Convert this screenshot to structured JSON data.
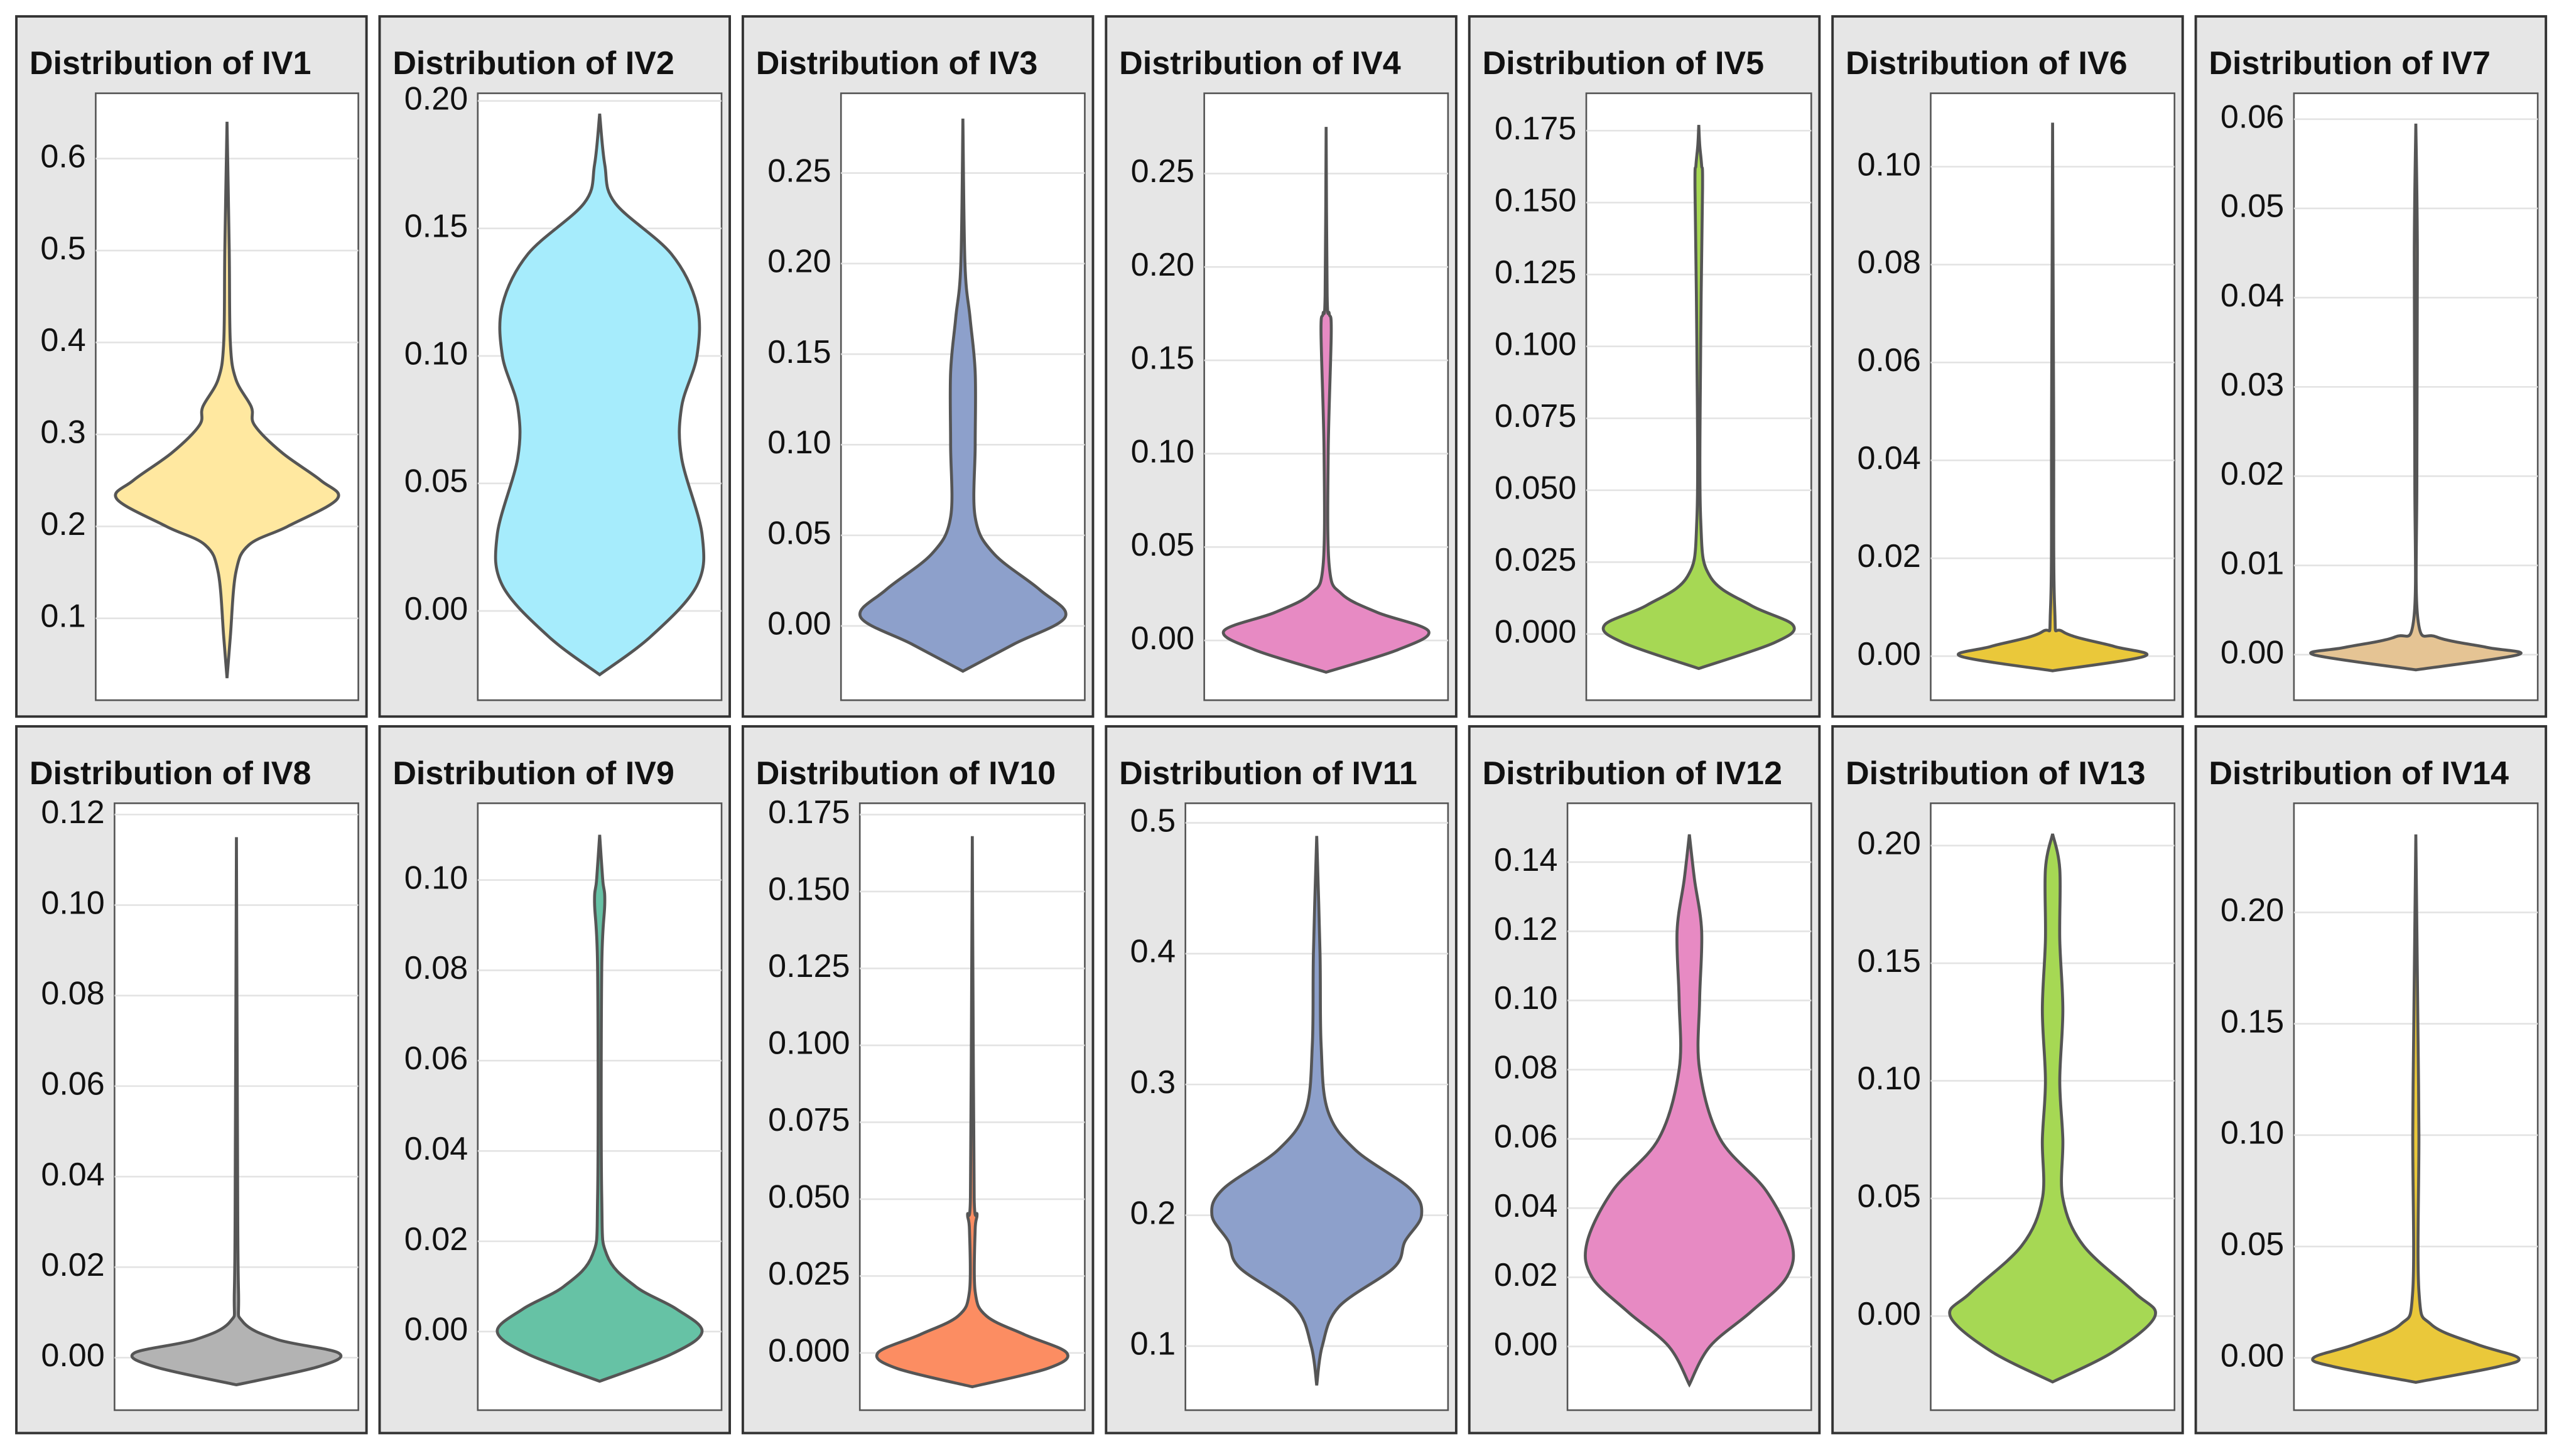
{
  "chart_data": [
    {
      "type": "violin",
      "title": "Distribution of IV1",
      "color": "#ffe8a0",
      "ylim": [
        0.011,
        0.671
      ],
      "yticks": [
        0.1,
        0.2,
        0.3,
        0.4,
        0.5,
        0.6
      ],
      "y": [
        0.035,
        0.08,
        0.15,
        0.18,
        0.2,
        0.23,
        0.25,
        0.28,
        0.31,
        0.33,
        0.36,
        0.4,
        0.5,
        0.64
      ],
      "density": [
        0,
        0.03,
        0.08,
        0.2,
        0.55,
        1,
        0.85,
        0.5,
        0.25,
        0.22,
        0.08,
        0.03,
        0.02,
        0
      ]
    },
    {
      "type": "violin",
      "title": "Distribution of IV2",
      "color": "#a6ecfc",
      "ylim": [
        -0.035,
        0.203
      ],
      "yticks": [
        {
          "value": 0,
          "label": "0.00"
        },
        0.05,
        {
          "value": 0.1,
          "label": "0.10"
        },
        0.15,
        {
          "value": 0.2,
          "label": "0.20"
        }
      ],
      "y": [
        -0.025,
        -0.01,
        0.01,
        0.03,
        0.06,
        0.08,
        0.1,
        0.12,
        0.14,
        0.16,
        0.175,
        0.195
      ],
      "density": [
        0,
        0.5,
        0.95,
        1,
        0.8,
        0.8,
        0.95,
        0.95,
        0.7,
        0.15,
        0.05,
        0
      ]
    },
    {
      "type": "violin",
      "title": "Distribution of IV3",
      "color": "#8da0cb",
      "ylim": [
        -0.041,
        0.294
      ],
      "yticks": [
        {
          "value": 0,
          "label": "0.00"
        },
        0.05,
        {
          "value": 0.1,
          "label": "0.10"
        },
        0.15,
        {
          "value": 0.2,
          "label": "0.20"
        },
        0.25
      ],
      "y": [
        -0.025,
        -0.01,
        0.005,
        0.02,
        0.04,
        0.06,
        0.1,
        0.14,
        0.17,
        0.2,
        0.28
      ],
      "density": [
        0,
        0.5,
        1,
        0.75,
        0.3,
        0.12,
        0.12,
        0.12,
        0.07,
        0.02,
        0
      ]
    },
    {
      "type": "violin",
      "title": "Distribution of IV4",
      "color": "#e78ac3",
      "ylim": [
        -0.032,
        0.293
      ],
      "yticks": [
        {
          "value": 0,
          "label": "0.00"
        },
        0.05,
        {
          "value": 0.1,
          "label": "0.10"
        },
        0.15,
        {
          "value": 0.2,
          "label": "0.20"
        },
        0.25
      ],
      "y": [
        -0.017,
        -0.005,
        0.005,
        0.015,
        0.025,
        0.04,
        0.1,
        0.165,
        0.175,
        0.185,
        0.275
      ],
      "density": [
        0,
        0.7,
        1,
        0.5,
        0.15,
        0.03,
        0.02,
        0.05,
        0.03,
        0.01,
        0
      ]
    },
    {
      "type": "violin",
      "title": "Distribution of IV5",
      "color": "#a6d854",
      "ylim": [
        -0.023,
        0.188
      ],
      "yticks": [
        {
          "value": 0,
          "label": "0.000"
        },
        0.025,
        {
          "value": 0.05,
          "label": "0.050"
        },
        0.075,
        {
          "value": 0.1,
          "label": "0.100"
        },
        0.125,
        {
          "value": 0.15,
          "label": "0.150"
        },
        0.175
      ],
      "y": [
        -0.012,
        -0.003,
        0.003,
        0.01,
        0.02,
        0.04,
        0.1,
        0.155,
        0.163,
        0.17,
        0.177
      ],
      "density": [
        0,
        0.8,
        1,
        0.55,
        0.12,
        0.02,
        0.02,
        0.04,
        0.03,
        0.01,
        0
      ]
    },
    {
      "type": "violin",
      "title": "Distribution of IV6",
      "color": "#eac83a",
      "ylim": [
        -0.009,
        0.115
      ],
      "yticks": [
        {
          "value": 0,
          "label": "0.00"
        },
        0.02,
        0.04,
        0.06,
        0.08,
        {
          "value": 0.1,
          "label": "0.10"
        }
      ],
      "y": [
        -0.003,
        0,
        0.002,
        0.005,
        0.01,
        0.05,
        0.109
      ],
      "density": [
        0,
        0.9,
        0.6,
        0.1,
        0.02,
        0.01,
        0
      ]
    },
    {
      "type": "violin",
      "title": "Distribution of IV7",
      "color": "#e5c494",
      "ylim": [
        -0.0051,
        0.0629
      ],
      "yticks": [
        {
          "value": 0,
          "label": "0.00"
        },
        0.01,
        0.02,
        0.03,
        0.04,
        0.05,
        0.06
      ],
      "y": [
        -0.0017,
        0,
        0.0008,
        0.002,
        0.004,
        0.02,
        0.045,
        0.0595
      ],
      "density": [
        0,
        1,
        0.7,
        0.2,
        0.02,
        0.01,
        0.015,
        0
      ]
    },
    {
      "type": "violin",
      "title": "Distribution of IV8",
      "color": "#b3b3b3",
      "ylim": [
        -0.0116,
        0.1225
      ],
      "yticks": [
        {
          "value": 0,
          "label": "0.00"
        },
        0.02,
        0.04,
        0.06,
        0.08,
        {
          "value": 0.1,
          "label": "0.10"
        },
        0.12
      ],
      "y": [
        -0.006,
        -0.002,
        0.001,
        0.004,
        0.008,
        0.015,
        0.05,
        0.115
      ],
      "density": [
        0,
        0.8,
        1,
        0.4,
        0.06,
        0.02,
        0.01,
        0
      ]
    },
    {
      "type": "violin",
      "title": "Distribution of IV9",
      "color": "#66c2a5",
      "ylim": [
        -0.0174,
        0.117
      ],
      "yticks": [
        {
          "value": 0,
          "label": "0.00"
        },
        0.02,
        0.04,
        0.06,
        0.08,
        {
          "value": 0.1,
          "label": "0.10"
        }
      ],
      "y": [
        -0.011,
        -0.005,
        0,
        0.005,
        0.01,
        0.017,
        0.03,
        0.08,
        0.095,
        0.1,
        0.11
      ],
      "density": [
        0,
        0.7,
        1,
        0.75,
        0.35,
        0.07,
        0.02,
        0.02,
        0.05,
        0.03,
        0
      ]
    },
    {
      "type": "violin",
      "title": "Distribution of IV10",
      "color": "#fc8d62",
      "ylim": [
        -0.0186,
        0.1787
      ],
      "yticks": [
        {
          "value": 0,
          "label": "0.000"
        },
        0.025,
        {
          "value": 0.05,
          "label": "0.050"
        },
        0.075,
        {
          "value": 0.1,
          "label": "0.100"
        },
        0.125,
        {
          "value": 0.15,
          "label": "0.150"
        },
        0.175
      ],
      "y": [
        -0.011,
        -0.005,
        0,
        0.006,
        0.012,
        0.02,
        0.04,
        0.045,
        0.05,
        0.1,
        0.168
      ],
      "density": [
        0,
        0.8,
        1,
        0.55,
        0.15,
        0.03,
        0.03,
        0.05,
        0.02,
        0.01,
        0
      ]
    },
    {
      "type": "violin",
      "title": "Distribution of IV11",
      "color": "#8da0cb",
      "ylim": [
        0.051,
        0.515
      ],
      "yticks": [
        0.1,
        0.2,
        0.3,
        0.4,
        0.5
      ],
      "y": [
        0.07,
        0.1,
        0.13,
        0.16,
        0.18,
        0.2,
        0.22,
        0.25,
        0.28,
        0.33,
        0.4,
        0.49
      ],
      "density": [
        0,
        0.05,
        0.2,
        0.7,
        0.8,
        0.95,
        0.85,
        0.35,
        0.1,
        0.04,
        0.03,
        0
      ]
    },
    {
      "type": "violin",
      "title": "Distribution of IV12",
      "color": "#e78ac3",
      "ylim": [
        -0.0184,
        0.157
      ],
      "yticks": [
        {
          "value": 0,
          "label": "0.00"
        },
        0.02,
        0.04,
        0.06,
        0.08,
        {
          "value": 0.1,
          "label": "0.10"
        },
        0.12,
        0.14
      ],
      "y": [
        -0.011,
        0,
        0.01,
        0.02,
        0.03,
        0.045,
        0.06,
        0.08,
        0.1,
        0.12,
        0.135,
        0.148
      ],
      "density": [
        0,
        0.2,
        0.6,
        0.95,
        1,
        0.75,
        0.3,
        0.1,
        0.1,
        0.12,
        0.05,
        0
      ]
    },
    {
      "type": "violin",
      "title": "Distribution of IV13",
      "color": "#a6d854",
      "ylim": [
        -0.04,
        0.218
      ],
      "yticks": [
        {
          "value": 0,
          "label": "0.00"
        },
        0.05,
        {
          "value": 0.1,
          "label": "0.10"
        },
        0.15,
        {
          "value": 0.2,
          "label": "0.20"
        }
      ],
      "y": [
        -0.028,
        -0.015,
        0,
        0.01,
        0.03,
        0.05,
        0.075,
        0.1,
        0.13,
        0.16,
        0.19,
        0.205
      ],
      "density": [
        0,
        0.6,
        1,
        0.8,
        0.3,
        0.1,
        0.1,
        0.07,
        0.1,
        0.07,
        0.07,
        0
      ]
    },
    {
      "type": "violin",
      "title": "Distribution of IV14",
      "color": "#eac83a",
      "ylim": [
        -0.0235,
        0.249
      ],
      "yticks": [
        {
          "value": 0,
          "label": "0.00"
        },
        0.05,
        {
          "value": 0.1,
          "label": "0.10"
        },
        0.15,
        {
          "value": 0.2,
          "label": "0.20"
        }
      ],
      "y": [
        -0.011,
        -0.004,
        0,
        0.006,
        0.015,
        0.03,
        0.1,
        0.15,
        0.235
      ],
      "density": [
        0,
        0.8,
        1,
        0.6,
        0.15,
        0.03,
        0.03,
        0.02,
        0
      ]
    }
  ]
}
